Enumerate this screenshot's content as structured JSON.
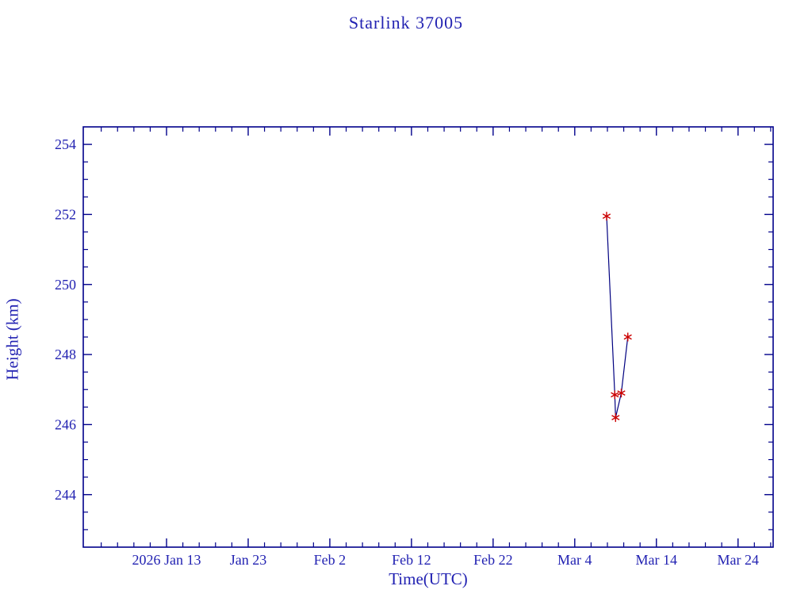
{
  "chart_data": {
    "type": "line",
    "title": "Starlink 37005",
    "xlabel": "Time(UTC)",
    "ylabel": "Height (km)",
    "x_unit": "day of year 2026 (Jan 1 = 1)",
    "xlim": [
      2.8,
      87.3
    ],
    "ylim": [
      242.5,
      254.5
    ],
    "grid": false,
    "legend": "none",
    "colors": {
      "frame": "#00008b",
      "text": "#2222b2",
      "line": "#000080",
      "marker": "#cc0000"
    },
    "x_major_ticks": [
      {
        "value": 13,
        "label": "2026 Jan 13"
      },
      {
        "value": 23,
        "label": "Jan 23"
      },
      {
        "value": 33,
        "label": "Feb  2"
      },
      {
        "value": 43,
        "label": "Feb 12"
      },
      {
        "value": 53,
        "label": "Feb 22"
      },
      {
        "value": 63,
        "label": "Mar  4"
      },
      {
        "value": 73,
        "label": "Mar 14"
      },
      {
        "value": 83,
        "label": "Mar 24"
      }
    ],
    "x_minor_step_days": 2,
    "y_major_ticks": [
      244,
      246,
      248,
      250,
      252,
      254
    ],
    "y_minor_step": 0.5,
    "series": [
      {
        "name": "Height (km)",
        "marker": "asterisk",
        "points": [
          {
            "day": 66.9,
            "date": "2026 Mar 8",
            "height_km": 251.95
          },
          {
            "day": 67.9,
            "date": "2026 Mar 9",
            "height_km": 246.85
          },
          {
            "day": 68.0,
            "date": "2026 Mar 9",
            "height_km": 246.2
          },
          {
            "day": 68.7,
            "date": "2026 Mar 10",
            "height_km": 246.9
          },
          {
            "day": 69.5,
            "date": "2026 Mar 10",
            "height_km": 248.5
          }
        ]
      }
    ]
  }
}
